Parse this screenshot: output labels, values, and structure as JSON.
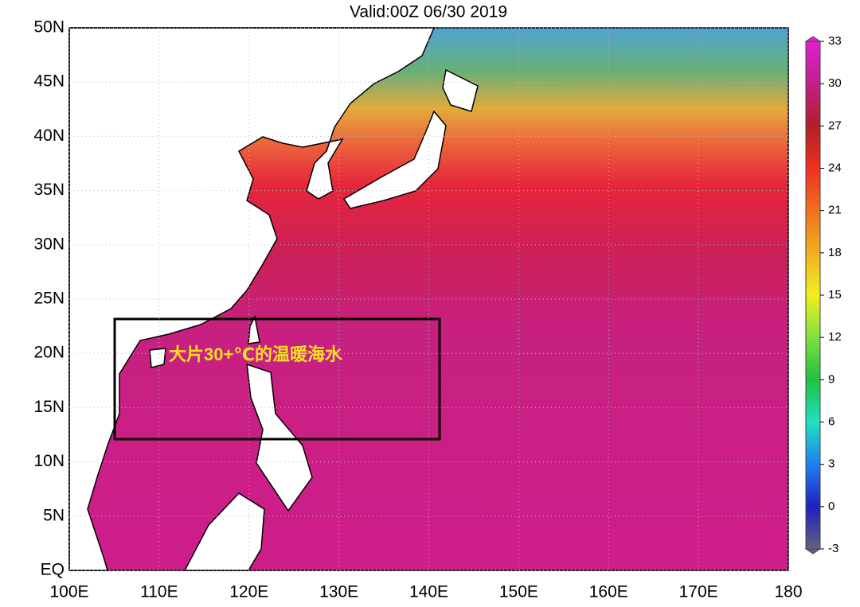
{
  "title": "Valid:00Z 06/30 2019",
  "map": {
    "lon_range": [
      100,
      180
    ],
    "lat_range": [
      0,
      50
    ],
    "lat_labels": [
      {
        "value": 50,
        "label": "50N"
      },
      {
        "value": 45,
        "label": "45N"
      },
      {
        "value": 40,
        "label": "40N"
      },
      {
        "value": 35,
        "label": "35N"
      },
      {
        "value": 30,
        "label": "30N"
      },
      {
        "value": 25,
        "label": "25N"
      },
      {
        "value": 20,
        "label": "20N"
      },
      {
        "value": 15,
        "label": "15N"
      },
      {
        "value": 10,
        "label": "10N"
      },
      {
        "value": 5,
        "label": "5N"
      },
      {
        "value": 0,
        "label": "EQ"
      }
    ],
    "lon_labels": [
      {
        "value": 100,
        "label": "100E"
      },
      {
        "value": 110,
        "label": "110E"
      },
      {
        "value": 120,
        "label": "120E"
      },
      {
        "value": 130,
        "label": "130E"
      },
      {
        "value": 140,
        "label": "140E"
      },
      {
        "value": 150,
        "label": "150E"
      },
      {
        "value": 160,
        "label": "160E"
      },
      {
        "value": 170,
        "label": "170E"
      },
      {
        "value": 180,
        "label": "180"
      }
    ],
    "annotation": "大片30+℃的温暖海水"
  },
  "colorbar": {
    "lim": [
      -3,
      33
    ],
    "ticks": [
      -3,
      0,
      3,
      6,
      9,
      12,
      15,
      18,
      21,
      24,
      27,
      30,
      33
    ]
  }
}
